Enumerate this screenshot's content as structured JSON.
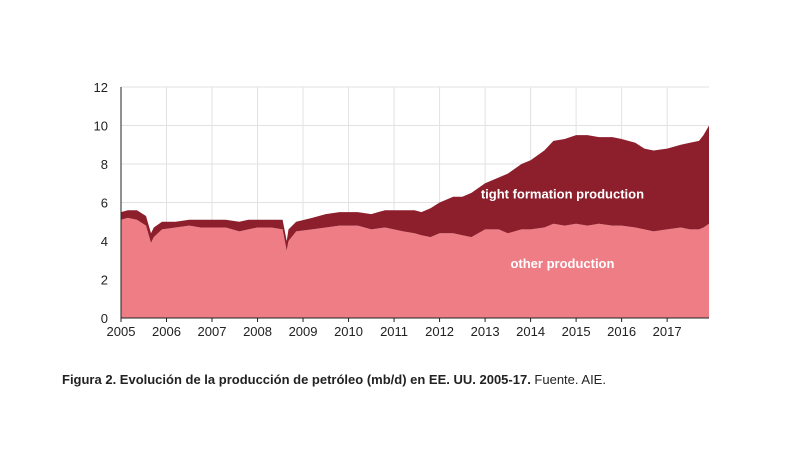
{
  "caption": {
    "bold": "Figura 2. Evolución de la producción de petróleo (mb/d) en EE. UU. 2005-17.",
    "normal": " Fuente. AIE."
  },
  "colors": {
    "other": "#ee7d86",
    "tight": "#8d1f2c",
    "grid": "#e2e2e2",
    "axis": "#222222"
  },
  "chart_data": {
    "type": "area",
    "stacked": true,
    "xlim": [
      2005,
      2017.92
    ],
    "ylim": [
      0,
      12
    ],
    "yticks": [
      0,
      2,
      4,
      6,
      8,
      10,
      12
    ],
    "xticks": [
      2005,
      2006,
      2007,
      2008,
      2009,
      2010,
      2011,
      2012,
      2013,
      2014,
      2015,
      2016,
      2017
    ],
    "x": [
      2005.0,
      2005.15,
      2005.35,
      2005.55,
      2005.66,
      2005.72,
      2005.9,
      2006.2,
      2006.5,
      2006.75,
      2007.0,
      2007.3,
      2007.6,
      2007.8,
      2008.0,
      2008.3,
      2008.55,
      2008.64,
      2008.68,
      2008.85,
      2009.2,
      2009.5,
      2009.8,
      2010.2,
      2010.5,
      2010.8,
      2011.2,
      2011.45,
      2011.6,
      2011.8,
      2012.0,
      2012.3,
      2012.5,
      2012.7,
      2013.0,
      2013.3,
      2013.5,
      2013.8,
      2014.0,
      2014.3,
      2014.5,
      2014.75,
      2015.0,
      2015.25,
      2015.5,
      2015.8,
      2016.0,
      2016.3,
      2016.5,
      2016.7,
      2017.0,
      2017.3,
      2017.5,
      2017.7,
      2017.8,
      2017.92
    ],
    "series": [
      {
        "name": "other production",
        "values": [
          5.1,
          5.2,
          5.1,
          4.8,
          3.9,
          4.2,
          4.6,
          4.7,
          4.8,
          4.7,
          4.7,
          4.7,
          4.5,
          4.6,
          4.7,
          4.7,
          4.6,
          3.5,
          4.0,
          4.5,
          4.6,
          4.7,
          4.8,
          4.8,
          4.6,
          4.7,
          4.5,
          4.4,
          4.3,
          4.2,
          4.4,
          4.4,
          4.3,
          4.2,
          4.6,
          4.6,
          4.4,
          4.6,
          4.6,
          4.7,
          4.9,
          4.8,
          4.9,
          4.8,
          4.9,
          4.8,
          4.8,
          4.7,
          4.6,
          4.5,
          4.6,
          4.7,
          4.6,
          4.6,
          4.7,
          4.9
        ]
      },
      {
        "name": "tight formation production",
        "values": [
          0.4,
          0.4,
          0.5,
          0.5,
          0.5,
          0.5,
          0.4,
          0.3,
          0.3,
          0.4,
          0.4,
          0.4,
          0.5,
          0.5,
          0.4,
          0.4,
          0.5,
          0.5,
          0.6,
          0.5,
          0.6,
          0.7,
          0.7,
          0.7,
          0.8,
          0.9,
          1.1,
          1.2,
          1.2,
          1.5,
          1.6,
          1.9,
          2.0,
          2.3,
          2.4,
          2.7,
          3.1,
          3.4,
          3.6,
          4.0,
          4.3,
          4.5,
          4.6,
          4.7,
          4.5,
          4.6,
          4.5,
          4.4,
          4.2,
          4.2,
          4.2,
          4.3,
          4.5,
          4.6,
          4.8,
          5.1
        ]
      }
    ],
    "annotations": [
      {
        "text": "tight formation production",
        "x": 2014.7,
        "y": 6.2
      },
      {
        "text": "other production",
        "x": 2014.7,
        "y": 2.6
      }
    ]
  }
}
